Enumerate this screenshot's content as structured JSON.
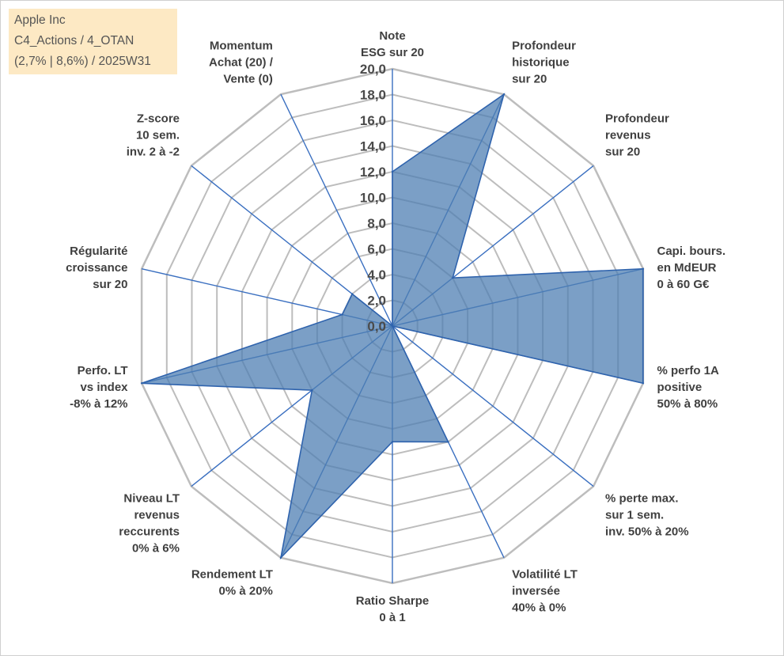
{
  "header": {
    "line1": "Apple Inc",
    "line2": "C4_Actions / 4_OTAN",
    "line3": "(2,7% | 8,6%) / 2025W31"
  },
  "colors": {
    "fill": "#4f7fb3",
    "stroke": "#2f63ad",
    "ring": "#bdbdbd",
    "spoke": "#3a6fc0",
    "title_bg": "#fde9c4"
  },
  "chart_data": {
    "type": "radar",
    "max": 20,
    "step": 2,
    "tick_labels": [
      "0,0",
      "2,0",
      "4,0",
      "6,0",
      "8,0",
      "10,0",
      "12,0",
      "14,0",
      "16,0",
      "18,0",
      "20,0"
    ],
    "axes": [
      {
        "label": [
          "Note",
          "ESG sur 20"
        ],
        "value": 12
      },
      {
        "label": [
          "Profondeur",
          "historique",
          "sur 20"
        ],
        "value": 20
      },
      {
        "label": [
          "Profondeur",
          "revenus",
          "sur 20"
        ],
        "value": 6
      },
      {
        "label": [
          "Capi. bours.",
          "en MdEUR",
          "0 à 60 G€"
        ],
        "value": 20
      },
      {
        "label": [
          "% perfo 1A",
          "positive",
          "50% à 80%"
        ],
        "value": 20
      },
      {
        "label": [
          "% perte max.",
          "sur 1 sem.",
          "inv. 50% à 20%"
        ],
        "value": 0
      },
      {
        "label": [
          "Volatilité LT",
          "inversée",
          "40% à 0%"
        ],
        "value": 10
      },
      {
        "label": [
          "Ratio Sharpe",
          "0 à 1"
        ],
        "value": 9
      },
      {
        "label": [
          "Rendement LT",
          "0% à 20%"
        ],
        "value": 20
      },
      {
        "label": [
          "Niveau LT",
          "revenus",
          "reccurents",
          "0% à 6%"
        ],
        "value": 8
      },
      {
        "label": [
          "Perfo. LT",
          "vs index",
          "-8% à 12%"
        ],
        "value": 20
      },
      {
        "label": [
          "Régularité",
          "croissance",
          "sur 20"
        ],
        "value": 4
      },
      {
        "label": [
          "Z-score",
          "10 sem.",
          "inv. 2 à -2"
        ],
        "value": 4
      },
      {
        "label": [
          "Momentum",
          "Achat (20) /",
          "Vente (0)"
        ],
        "value": 0
      }
    ]
  }
}
